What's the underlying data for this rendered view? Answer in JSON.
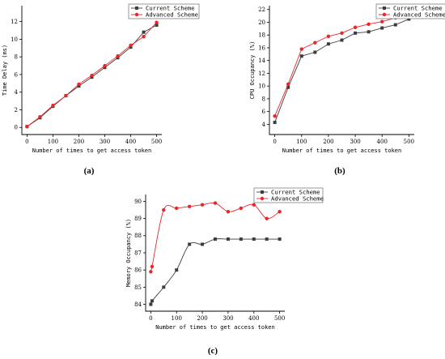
{
  "chart_data": [
    {
      "type": "line",
      "panel_label": "(a)",
      "xlabel": "Number of times to get access token",
      "ylabel": "Time Delay (ms)",
      "xlim": [
        -20,
        520
      ],
      "ylim": [
        -0.8,
        13.8
      ],
      "xticks": [
        0,
        100,
        200,
        300,
        400,
        500
      ],
      "yticks": [
        0,
        2,
        4,
        6,
        8,
        10,
        12
      ],
      "legend_position": "top-right",
      "smooth": false,
      "series": [
        {
          "name": "Current Scheme",
          "color": "#3d3d3d",
          "marker": "square",
          "x": [
            0,
            50,
            100,
            150,
            200,
            250,
            300,
            350,
            400,
            450,
            500
          ],
          "y": [
            0.1,
            1.1,
            2.4,
            3.6,
            4.7,
            5.7,
            6.8,
            7.9,
            9.1,
            10.8,
            11.6
          ]
        },
        {
          "name": "Advanced Scheme",
          "color": "#e8262b",
          "marker": "circle",
          "x": [
            0,
            50,
            100,
            150,
            200,
            250,
            300,
            350,
            400,
            450,
            500
          ],
          "y": [
            0.1,
            1.2,
            2.5,
            3.6,
            4.9,
            5.9,
            7.0,
            8.1,
            9.3,
            10.3,
            11.9
          ]
        }
      ]
    },
    {
      "type": "line",
      "panel_label": "(b)",
      "xlabel": "Number of times to get access token",
      "ylabel": "CPU Occupancy (%)",
      "xlim": [
        -20,
        520
      ],
      "ylim": [
        2.4,
        22.6
      ],
      "xticks": [
        0,
        100,
        200,
        300,
        400,
        500
      ],
      "yticks": [
        4,
        6,
        8,
        10,
        12,
        14,
        16,
        18,
        20,
        22
      ],
      "legend_position": "top-right",
      "smooth": false,
      "series": [
        {
          "name": "Current Scheme",
          "color": "#3d3d3d",
          "marker": "square",
          "x": [
            0,
            50,
            100,
            150,
            200,
            250,
            300,
            350,
            400,
            450,
            500
          ],
          "y": [
            4.3,
            9.8,
            14.7,
            15.3,
            16.6,
            17.2,
            18.3,
            18.5,
            19.1,
            19.6,
            20.5
          ]
        },
        {
          "name": "Advanced Scheme",
          "color": "#e8262b",
          "marker": "circle",
          "x": [
            0,
            50,
            100,
            150,
            200,
            250,
            300,
            350,
            400,
            450,
            500
          ],
          "y": [
            5.3,
            10.3,
            15.8,
            16.8,
            17.8,
            18.3,
            19.2,
            19.7,
            20.1,
            20.7,
            21.3
          ]
        }
      ]
    },
    {
      "type": "line",
      "panel_label": "(c)",
      "xlabel": "Number of times to get access token",
      "ylabel": "Memory Occupancy (%)",
      "xlim": [
        -20,
        520
      ],
      "ylim": [
        83.6,
        90.4
      ],
      "xticks": [
        0,
        100,
        200,
        300,
        400,
        500
      ],
      "yticks": [
        84,
        85,
        86,
        87,
        88,
        89,
        90
      ],
      "legend_position": "top-right",
      "smooth": true,
      "series": [
        {
          "name": "Current Scheme",
          "color": "#3d3d3d",
          "marker": "square",
          "x": [
            0,
            5,
            50,
            100,
            150,
            200,
            250,
            300,
            350,
            400,
            450,
            500
          ],
          "y": [
            84.0,
            84.2,
            85.0,
            86.0,
            87.5,
            87.5,
            87.8,
            87.8,
            87.8,
            87.8,
            87.8,
            87.8
          ]
        },
        {
          "name": "Advanced Scheme",
          "color": "#e8262b",
          "marker": "circle",
          "x": [
            0,
            5,
            50,
            100,
            150,
            200,
            250,
            300,
            350,
            400,
            450,
            500
          ],
          "y": [
            85.9,
            86.2,
            89.5,
            89.6,
            89.7,
            89.8,
            89.9,
            89.4,
            89.6,
            89.8,
            89.0,
            89.4
          ]
        }
      ]
    }
  ]
}
